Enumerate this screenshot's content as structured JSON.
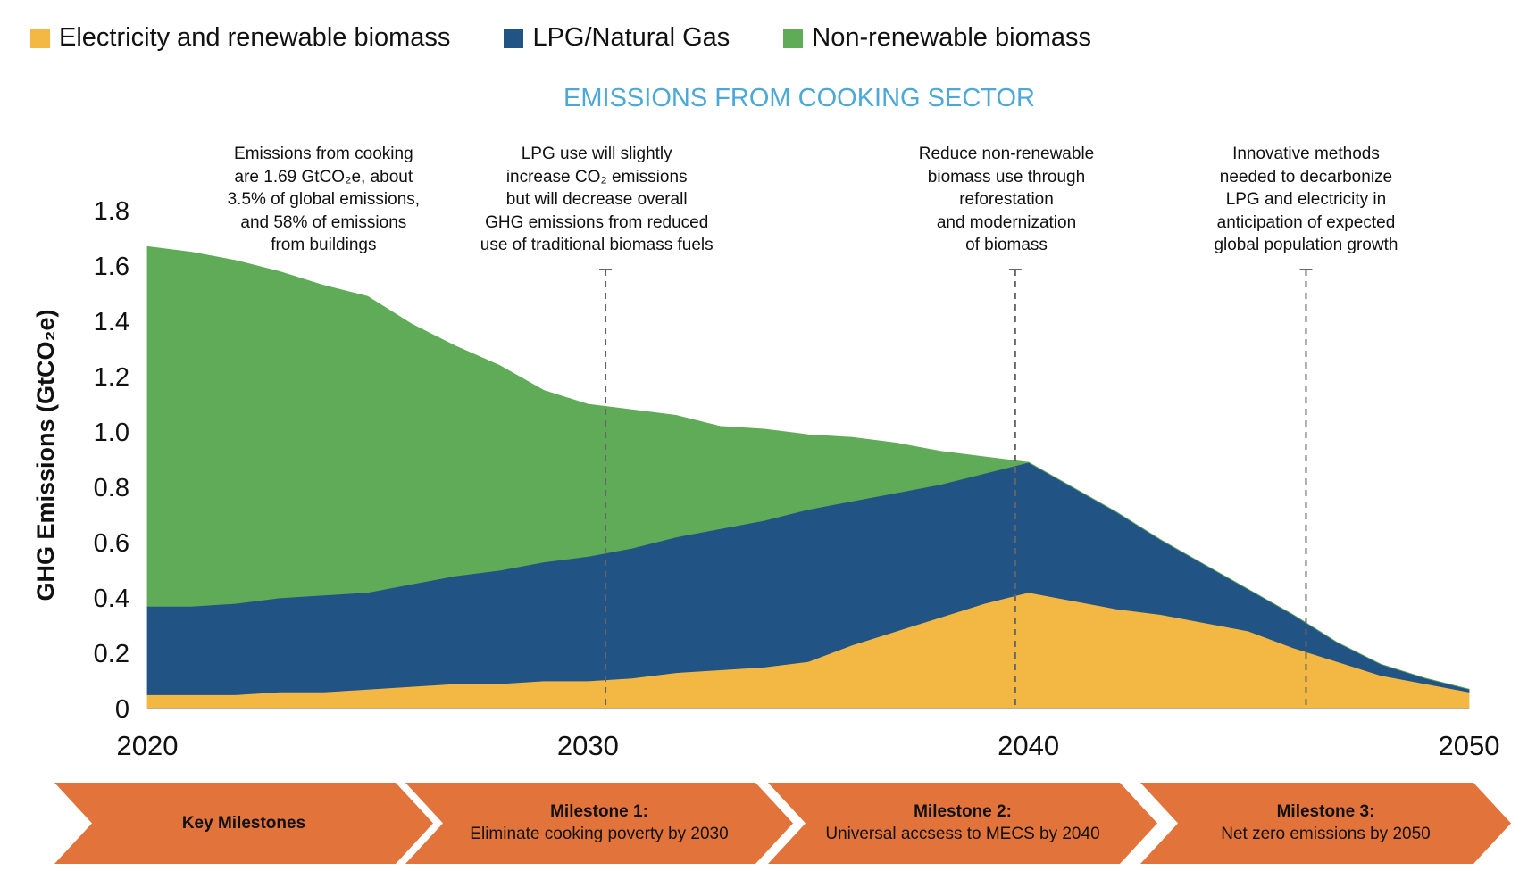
{
  "chart_data": {
    "type": "area",
    "stacked": true,
    "title": "EMISSIONS FROM COOKING SECTOR",
    "ylabel": "GHG Emissions (GtCO₂e)",
    "xlabel": "",
    "ylim": [
      0,
      1.8
    ],
    "yticks": [
      "0",
      "0.2",
      "0.4",
      "0.6",
      "0.8",
      "1.0",
      "1.2",
      "1.4",
      "1.6",
      "1.8"
    ],
    "xticks": [
      "2020",
      "2030",
      "2040",
      "2050"
    ],
    "grid": false,
    "legend_placement": "top-left",
    "x": [
      2020,
      2021,
      2022,
      2023,
      2024,
      2025,
      2026,
      2027,
      2028,
      2029,
      2030,
      2031,
      2032,
      2033,
      2034,
      2035,
      2036,
      2037,
      2038,
      2039,
      2040,
      2041,
      2042,
      2043,
      2044,
      2045,
      2046,
      2047,
      2048,
      2049,
      2050
    ],
    "series": [
      {
        "name": "Electricity and renewable biomass",
        "color": "#F2B843",
        "values": [
          0.05,
          0.05,
          0.05,
          0.06,
          0.06,
          0.07,
          0.08,
          0.09,
          0.09,
          0.1,
          0.1,
          0.11,
          0.13,
          0.14,
          0.15,
          0.17,
          0.23,
          0.28,
          0.33,
          0.38,
          0.42,
          0.39,
          0.36,
          0.34,
          0.31,
          0.28,
          0.22,
          0.17,
          0.12,
          0.09,
          0.06
        ]
      },
      {
        "name": "LPG/Natural Gas",
        "color": "#225385",
        "values": [
          0.32,
          0.32,
          0.33,
          0.34,
          0.35,
          0.35,
          0.37,
          0.39,
          0.41,
          0.43,
          0.45,
          0.47,
          0.49,
          0.51,
          0.53,
          0.55,
          0.52,
          0.5,
          0.48,
          0.47,
          0.47,
          0.41,
          0.35,
          0.27,
          0.21,
          0.15,
          0.12,
          0.07,
          0.04,
          0.02,
          0.01
        ]
      },
      {
        "name": "Non-renewable biomass",
        "color": "#5FAB57",
        "values": [
          1.3,
          1.28,
          1.24,
          1.18,
          1.12,
          1.07,
          0.94,
          0.83,
          0.74,
          0.62,
          0.55,
          0.5,
          0.44,
          0.37,
          0.33,
          0.27,
          0.23,
          0.18,
          0.12,
          0.06,
          0.0,
          0,
          0,
          0,
          0,
          0,
          0,
          0,
          0,
          0,
          0
        ]
      }
    ],
    "milestone_lines": [
      2030.4,
      2039.7,
      2046.3
    ],
    "annotations": [
      {
        "year": 2024,
        "lines": [
          "Emissions from cooking",
          "are 1.69 GtCO₂e, about",
          "3.5% of global emissions,",
          "and 58% of emissions",
          "from buildings"
        ]
      },
      {
        "year": 2030.2,
        "lines": [
          "LPG use will slightly",
          "increase CO₂ emissions",
          "but will decrease overall",
          "GHG emissions from reduced",
          "use of traditional biomass fuels"
        ]
      },
      {
        "year": 2039.5,
        "lines": [
          "Reduce non-renewable",
          "biomass use through",
          "reforestation",
          "and modernization",
          "of biomass"
        ]
      },
      {
        "year": 2046.3,
        "lines": [
          "Innovative methods",
          "needed to decarbonize",
          "LPG and electricity in",
          "anticipation of expected",
          "global population growth"
        ]
      }
    ]
  },
  "milestones": [
    {
      "title": "Key Milestones",
      "text": ""
    },
    {
      "title": "Milestone 1:",
      "text": "Eliminate cooking poverty by 2030"
    },
    {
      "title": "Milestone 2:",
      "text": "Universal accsess to MECS by 2040"
    },
    {
      "title": "Milestone 3:",
      "text": "Net zero emissions by 2050"
    }
  ],
  "milestone_color": "#E2743B",
  "title_color": "#4BA8D8"
}
